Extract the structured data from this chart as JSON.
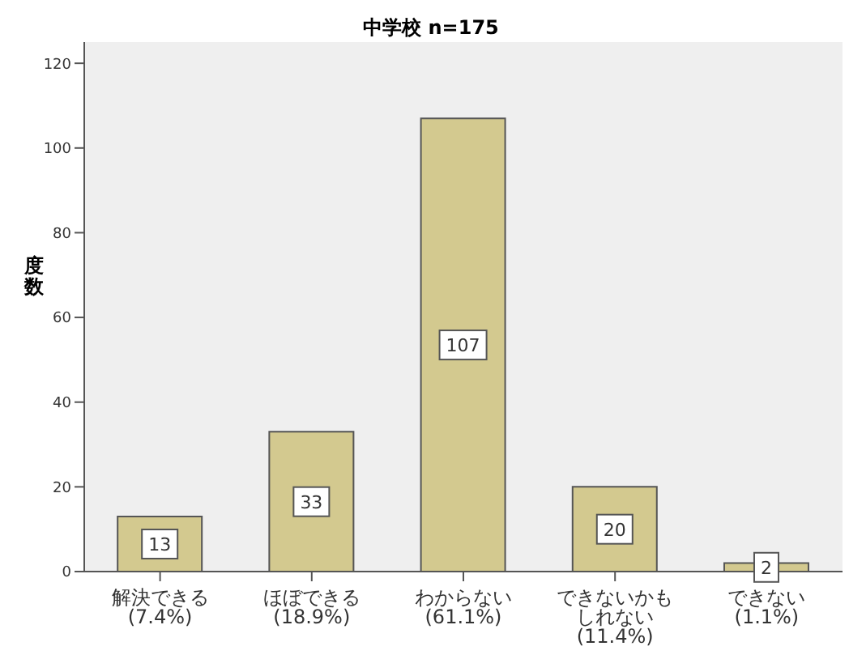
{
  "chart_data": {
    "type": "bar",
    "title": "中学校 n=175",
    "ylabel": "度数",
    "categories": [
      "解決できる\n(7.4%)",
      "ほぼできる\n(18.9%)",
      "わからない\n(61.1%)",
      "できないかもしれない\n(11.4%)",
      "できない\n(1.1%)"
    ],
    "values": [
      13,
      33,
      107,
      20,
      2
    ],
    "color": "#d3c98f",
    "ylim": [
      0,
      125
    ],
    "yticks": [
      0,
      20,
      40,
      60,
      80,
      100,
      120
    ],
    "grid": false,
    "data_labels": true
  }
}
